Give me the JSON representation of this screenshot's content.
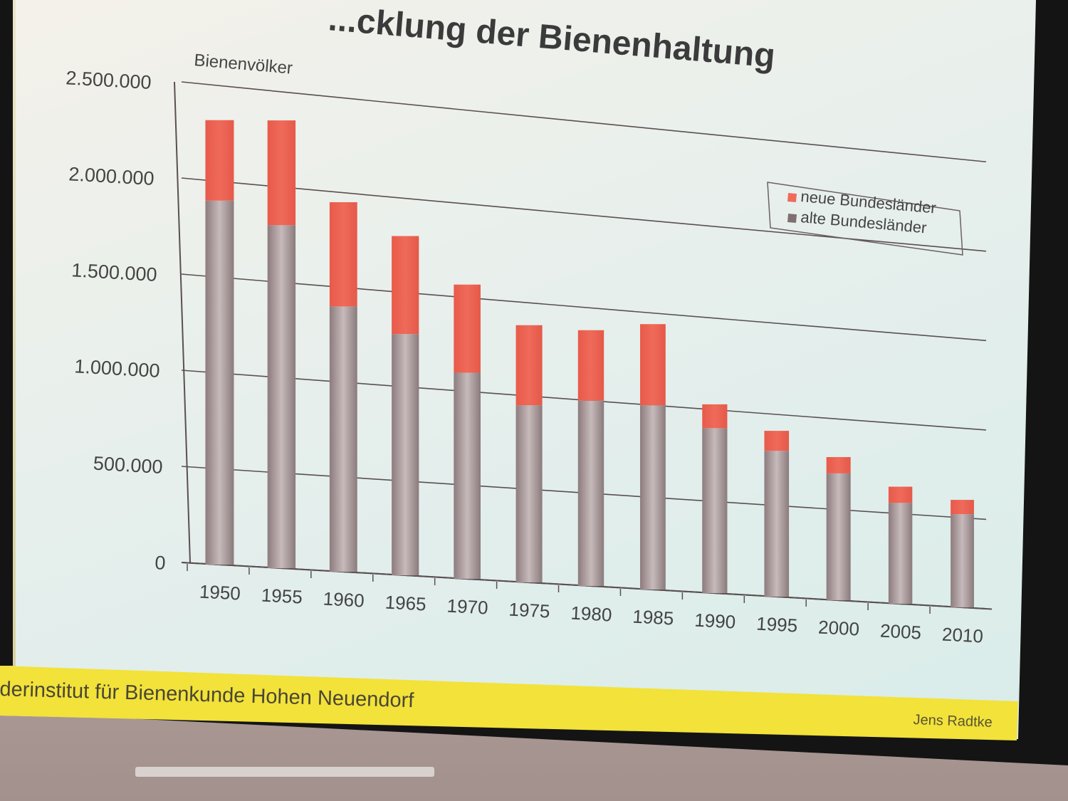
{
  "slide": {
    "title": "...cklung der Bienenhaltung",
    "footer_text": "derinstitut für Bienenkunde Hohen Neuendorf",
    "author": "Jens Radtke"
  },
  "colors": {
    "neue": "#ef6a5a",
    "alte": "#a8989a",
    "footer": "#f2e23a"
  },
  "chart_data": {
    "type": "bar",
    "stacked": true,
    "title": "...cklung der Bienenhaltung",
    "ylabel": "Bienenvölker",
    "xlabel": "",
    "ylim": [
      0,
      2500000
    ],
    "yticks": [
      0,
      500000,
      1000000,
      1500000,
      2000000,
      2500000
    ],
    "ytick_labels": [
      "0",
      "500.000",
      "1.000.000",
      "1.500.000",
      "2.000.000",
      "2.500.000"
    ],
    "categories": [
      "1950",
      "1955",
      "1960",
      "1965",
      "1970",
      "1975",
      "1980",
      "1985",
      "1990",
      "1995",
      "2000",
      "2005",
      "2010"
    ],
    "grid": true,
    "legend": "top-right",
    "series": [
      {
        "name": "alte Bundesländer",
        "color": "#a8989a",
        "values": [
          1900000,
          1800000,
          1400000,
          1280000,
          1100000,
          950000,
          1000000,
          1000000,
          900000,
          800000,
          700000,
          560000,
          520000
        ]
      },
      {
        "name": "neue Bundesländer",
        "color": "#ef6a5a",
        "values": [
          420000,
          550000,
          550000,
          520000,
          470000,
          430000,
          380000,
          440000,
          130000,
          110000,
          90000,
          90000,
          80000
        ]
      }
    ]
  }
}
